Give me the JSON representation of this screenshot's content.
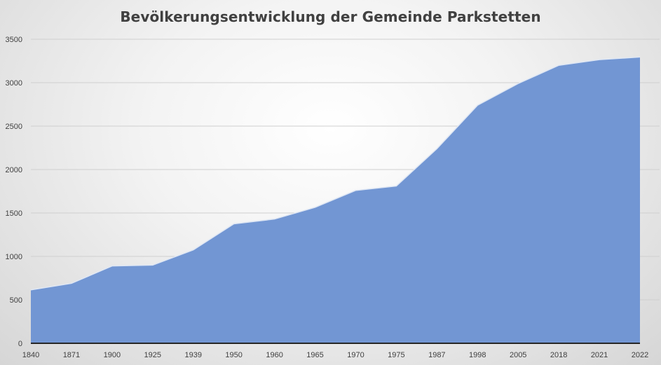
{
  "chart_data": {
    "type": "area",
    "title": "Bevölkerungsentwicklung der Gemeinde Parkstetten",
    "xlabel": "",
    "ylabel": "",
    "categories": [
      "1840",
      "1871",
      "1900",
      "1925",
      "1939",
      "1950",
      "1960",
      "1965",
      "1970",
      "1975",
      "1987",
      "1998",
      "2005",
      "2018",
      "2021",
      "2022"
    ],
    "series": [
      {
        "values": [
          615,
          690,
          890,
          900,
          1075,
          1375,
          1430,
          1565,
          1760,
          1810,
          2240,
          2740,
          2990,
          3200,
          3265,
          3295
        ]
      }
    ],
    "ylim": [
      0,
      3500
    ],
    "yticks": [
      "0",
      "500",
      "1000",
      "1500",
      "2000",
      "2500",
      "3000",
      "3500"
    ],
    "grid": true,
    "legend": "none",
    "colors": {
      "area_fill": "#7296d3",
      "area_line": "#dfe7f4",
      "gridline": "#cfcfcf",
      "axis_line": "#262626"
    }
  }
}
